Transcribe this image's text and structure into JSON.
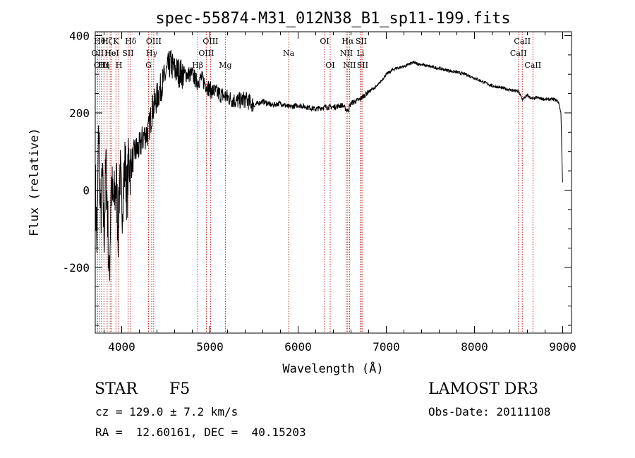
{
  "chart_data": {
    "type": "line",
    "title": "spec-55874-M31_012N38_B1_sp11-199.fits",
    "xlabel": "Wavelength (Å)",
    "ylabel": "Flux (relative)",
    "xlim": [
      3700,
      9100
    ],
    "ylim": [
      -370,
      410
    ],
    "x_ticks": [
      4000,
      5000,
      6000,
      7000,
      8000,
      9000
    ],
    "y_ticks": [
      -200,
      0,
      200,
      400
    ],
    "grid": false,
    "series": [
      {
        "color": "#000000",
        "anchors": [
          [
            3700,
            20
          ],
          [
            3720,
            -150
          ],
          [
            3740,
            180
          ],
          [
            3760,
            -80
          ],
          [
            3780,
            30
          ],
          [
            3800,
            -120
          ],
          [
            3820,
            60
          ],
          [
            3840,
            -60
          ],
          [
            3860,
            -250
          ],
          [
            3880,
            40
          ],
          [
            3900,
            -40
          ],
          [
            3920,
            -20
          ],
          [
            3940,
            20
          ],
          [
            3960,
            -110
          ],
          [
            3980,
            60
          ],
          [
            4000,
            -50
          ],
          [
            4020,
            20
          ],
          [
            4040,
            70
          ],
          [
            4060,
            -20
          ],
          [
            4080,
            80
          ],
          [
            4100,
            60
          ],
          [
            4150,
            100
          ],
          [
            4200,
            110
          ],
          [
            4250,
            140
          ],
          [
            4300,
            150
          ],
          [
            4350,
            210
          ],
          [
            4400,
            240
          ],
          [
            4450,
            270
          ],
          [
            4500,
            300
          ],
          [
            4550,
            330
          ],
          [
            4600,
            310
          ],
          [
            4700,
            300
          ],
          [
            4800,
            300
          ],
          [
            4850,
            280
          ],
          [
            4900,
            290
          ],
          [
            5000,
            260
          ],
          [
            5100,
            250
          ],
          [
            5200,
            240
          ],
          [
            5300,
            230
          ],
          [
            5400,
            235
          ],
          [
            5500,
            220
          ],
          [
            5600,
            230
          ],
          [
            5700,
            220
          ],
          [
            5800,
            225
          ],
          [
            5900,
            215
          ],
          [
            6000,
            220
          ],
          [
            6100,
            215
          ],
          [
            6200,
            210
          ],
          [
            6300,
            215
          ],
          [
            6400,
            215
          ],
          [
            6500,
            220
          ],
          [
            6563,
            205
          ],
          [
            6600,
            225
          ],
          [
            6700,
            235
          ],
          [
            6800,
            255
          ],
          [
            6900,
            270
          ],
          [
            7000,
            300
          ],
          [
            7100,
            315
          ],
          [
            7200,
            320
          ],
          [
            7300,
            330
          ],
          [
            7400,
            325
          ],
          [
            7500,
            320
          ],
          [
            7600,
            315
          ],
          [
            7700,
            310
          ],
          [
            7800,
            305
          ],
          [
            7900,
            300
          ],
          [
            8000,
            290
          ],
          [
            8100,
            280
          ],
          [
            8200,
            270
          ],
          [
            8300,
            265
          ],
          [
            8400,
            260
          ],
          [
            8500,
            255
          ],
          [
            8542,
            235
          ],
          [
            8600,
            245
          ],
          [
            8662,
            235
          ],
          [
            8700,
            240
          ],
          [
            8800,
            235
          ],
          [
            8900,
            235
          ],
          [
            8950,
            230
          ],
          [
            8980,
            200
          ],
          [
            8990,
            100
          ],
          [
            9000,
            0
          ]
        ]
      }
    ],
    "lines": [
      {
        "wavelength": 3727,
        "label": "OII",
        "row": 2
      },
      {
        "wavelength": 3750,
        "label": "Hθ",
        "row": 1
      },
      {
        "wavelength": 3771,
        "label": "OIII",
        "row": 3
      },
      {
        "wavelength": 3798,
        "label": "Hη",
        "row": 3
      },
      {
        "wavelength": 3835,
        "label": "Hζ",
        "row": 1
      },
      {
        "wavelength": 3869,
        "label": "He",
        "row": 2
      },
      {
        "wavelength": 3889,
        "label": "HeI",
        "row": 2
      },
      {
        "wavelength": 3934,
        "label": "K",
        "row": 1
      },
      {
        "wavelength": 3968,
        "label": "H",
        "row": 3
      },
      {
        "wavelength": 4072,
        "label": "SII",
        "row": 2
      },
      {
        "wavelength": 4102,
        "label": "Hδ",
        "row": 1
      },
      {
        "wavelength": 4304,
        "label": "G",
        "row": 3
      },
      {
        "wavelength": 4340,
        "label": "Hγ",
        "row": 2
      },
      {
        "wavelength": 4363,
        "label": "OIII",
        "row": 1
      },
      {
        "wavelength": 4861,
        "label": "Hβ",
        "row": 3
      },
      {
        "wavelength": 4959,
        "label": "OIII",
        "row": 2
      },
      {
        "wavelength": 5007,
        "label": "OIII",
        "row": 1
      },
      {
        "wavelength": 5175,
        "label": "Mg",
        "row": 3
      },
      {
        "wavelength": 5893,
        "label": "Na",
        "row": 2
      },
      {
        "wavelength": 6300,
        "label": "OI",
        "row": 1
      },
      {
        "wavelength": 6364,
        "label": "OI",
        "row": 3
      },
      {
        "wavelength": 6548,
        "label": "NII",
        "row": 2
      },
      {
        "wavelength": 6563,
        "label": "Hα",
        "row": 1
      },
      {
        "wavelength": 6583,
        "label": "NII",
        "row": 3
      },
      {
        "wavelength": 6708,
        "label": "Li",
        "row": 2
      },
      {
        "wavelength": 6716,
        "label": "SII",
        "row": 1
      },
      {
        "wavelength": 6731,
        "label": "SII",
        "row": 3
      },
      {
        "wavelength": 8498,
        "label": "CaII",
        "row": 2
      },
      {
        "wavelength": 8542,
        "label": "CaII",
        "row": 1
      },
      {
        "wavelength": 8662,
        "label": "CaII",
        "row": 3
      }
    ]
  },
  "info": {
    "object_class": "STAR",
    "subclass": "F5",
    "cz": "cz = 129.0 ± 7.2 km/s",
    "coords": "RA =  12.60161, DEC =  40.15203",
    "survey": "LAMOST DR3",
    "obs_date": "Obs-Date: 20111108"
  }
}
